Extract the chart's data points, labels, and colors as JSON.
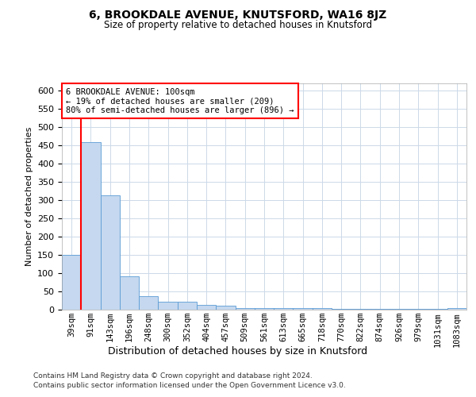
{
  "title": "6, BROOKDALE AVENUE, KNUTSFORD, WA16 8JZ",
  "subtitle": "Size of property relative to detached houses in Knutsford",
  "xlabel": "Distribution of detached houses by size in Knutsford",
  "ylabel": "Number of detached properties",
  "bar_labels": [
    "39sqm",
    "91sqm",
    "143sqm",
    "196sqm",
    "248sqm",
    "300sqm",
    "352sqm",
    "404sqm",
    "457sqm",
    "509sqm",
    "561sqm",
    "613sqm",
    "665sqm",
    "718sqm",
    "770sqm",
    "822sqm",
    "874sqm",
    "926sqm",
    "979sqm",
    "1031sqm",
    "1083sqm"
  ],
  "bar_values": [
    150,
    460,
    313,
    92,
    38,
    22,
    22,
    13,
    10,
    5,
    5,
    5,
    5,
    5,
    3,
    3,
    3,
    3,
    3,
    3,
    5
  ],
  "bar_color": "#c5d8ef",
  "bar_edge_color": "#5b9bd5",
  "red_line_x": 0.5,
  "annotation_title": "6 BROOKDALE AVENUE: 100sqm",
  "annotation_line1": "← 19% of detached houses are smaller (209)",
  "annotation_line2": "80% of semi-detached houses are larger (896) →",
  "annotation_box_color": "white",
  "annotation_box_edge": "red",
  "ylim": [
    0,
    620
  ],
  "yticks": [
    0,
    50,
    100,
    150,
    200,
    250,
    300,
    350,
    400,
    450,
    500,
    550,
    600
  ],
  "footer_line1": "Contains HM Land Registry data © Crown copyright and database right 2024.",
  "footer_line2": "Contains public sector information licensed under the Open Government Licence v3.0.",
  "bg_color": "white",
  "grid_color": "#ccd9e8"
}
